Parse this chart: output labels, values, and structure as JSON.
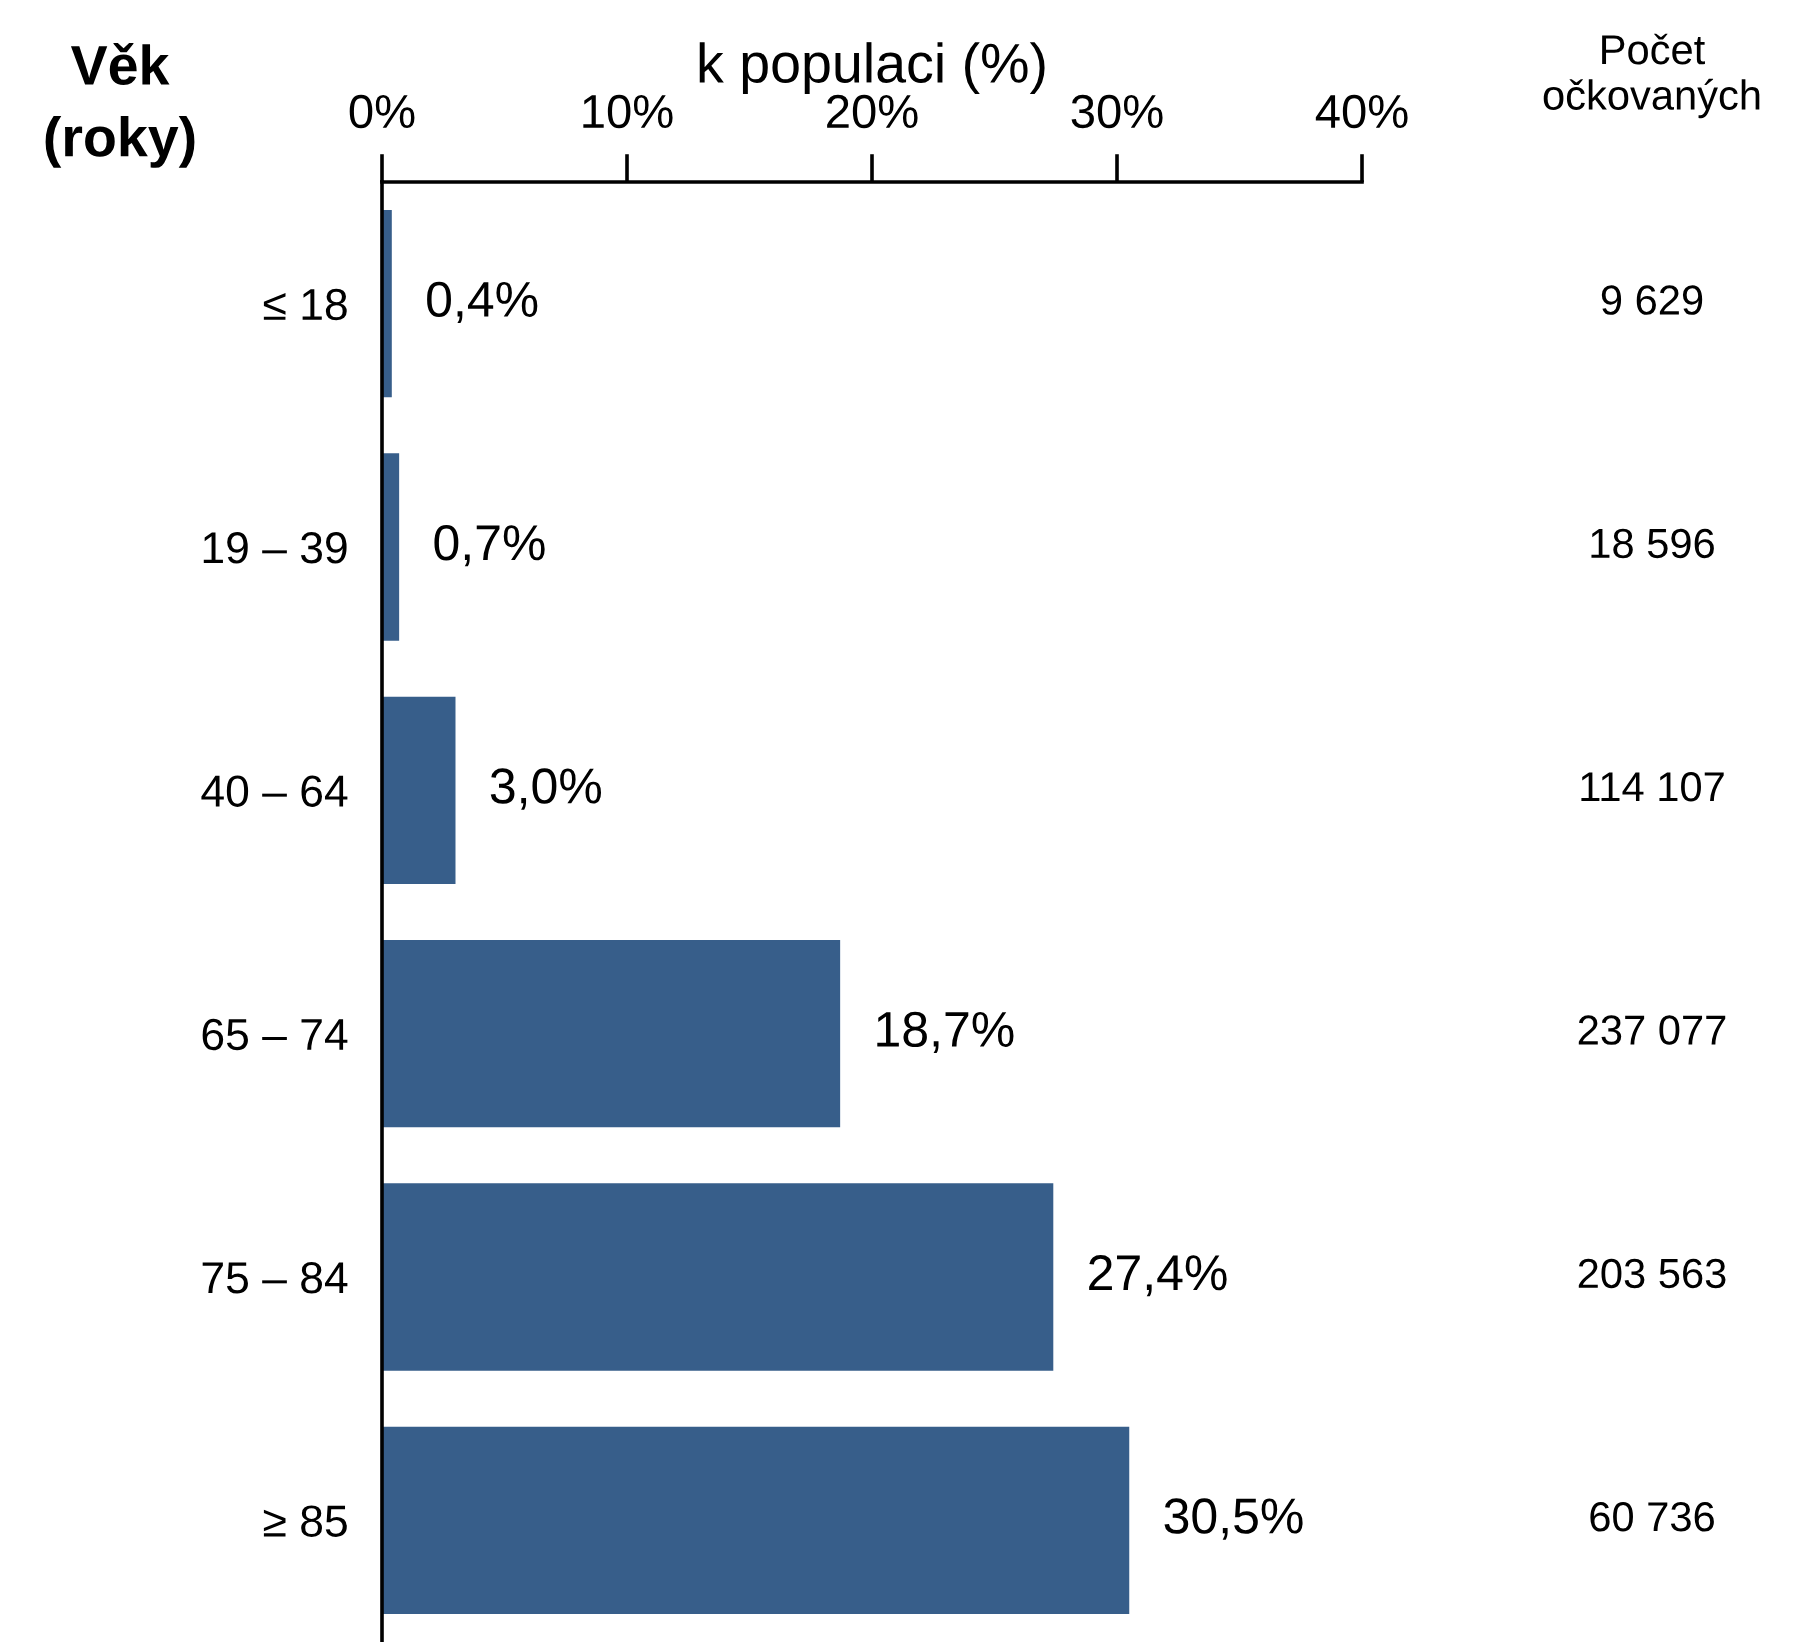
{
  "chart_data": {
    "type": "bar",
    "orientation": "horizontal",
    "xlabel": "k populaci (%)",
    "ylabel": "Věk\n(roky)",
    "categories": [
      "≤ 18",
      "19 – 39",
      "40 – 64",
      "65 – 74",
      "75 – 84",
      "≥ 85"
    ],
    "values": [
      0.4,
      0.7,
      3.0,
      18.7,
      27.4,
      30.5
    ],
    "value_labels": [
      "0,4%",
      "0,7%",
      "3,0%",
      "18,7%",
      "27,4%",
      "30,5%"
    ],
    "color": "#375e8a",
    "xlim": [
      0,
      40
    ],
    "xticks": [
      {
        "value": 0,
        "label": "0%"
      },
      {
        "value": 10,
        "label": "10%"
      },
      {
        "value": 20,
        "label": "20%"
      },
      {
        "value": 30,
        "label": "30%"
      },
      {
        "value": 40,
        "label": "40%"
      }
    ],
    "annotations": [
      "Počet\nočkovaných",
      "9 629",
      "18 596",
      "114 107",
      "237 077",
      "203 563",
      "60 736"
    ]
  }
}
